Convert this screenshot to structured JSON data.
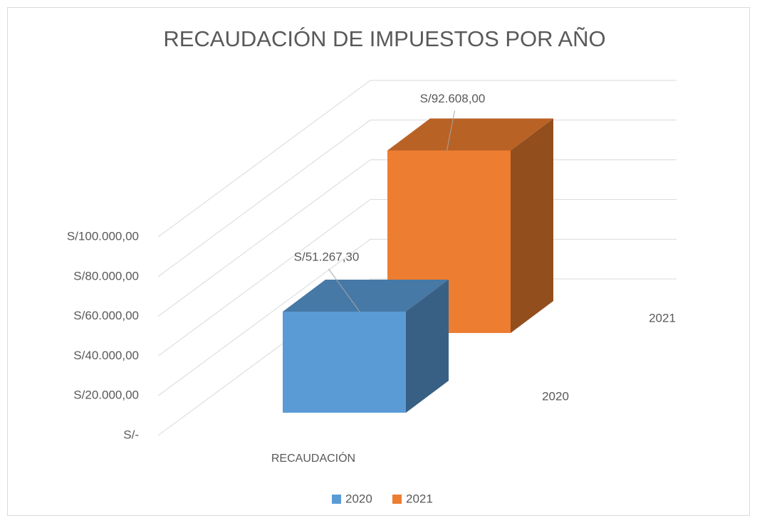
{
  "chart_data": {
    "type": "bar3d",
    "title": "RECAUDACIÓN DE IMPUESTOS POR AÑO",
    "categories": [
      "RECAUDACIÓN"
    ],
    "series": [
      {
        "name": "2020",
        "color": "#5b9bd5",
        "values": [
          51267.3
        ],
        "value_labels": [
          "S/51.267,30"
        ]
      },
      {
        "name": "2021",
        "color": "#ed7d31",
        "values": [
          92608
        ],
        "value_labels": [
          "S/92.608,00"
        ]
      }
    ],
    "ylim": [
      0,
      100000
    ],
    "yticks": [
      {
        "value": 0,
        "label": "S/-"
      },
      {
        "value": 20000,
        "label": "S/20.000,00"
      },
      {
        "value": 40000,
        "label": "S/40.000,00"
      },
      {
        "value": 60000,
        "label": "S/60.000,00"
      },
      {
        "value": 80000,
        "label": "S/80.000,00"
      },
      {
        "value": 100000,
        "label": "S/100.000,00"
      }
    ],
    "grid": true,
    "legend": "bottom"
  }
}
